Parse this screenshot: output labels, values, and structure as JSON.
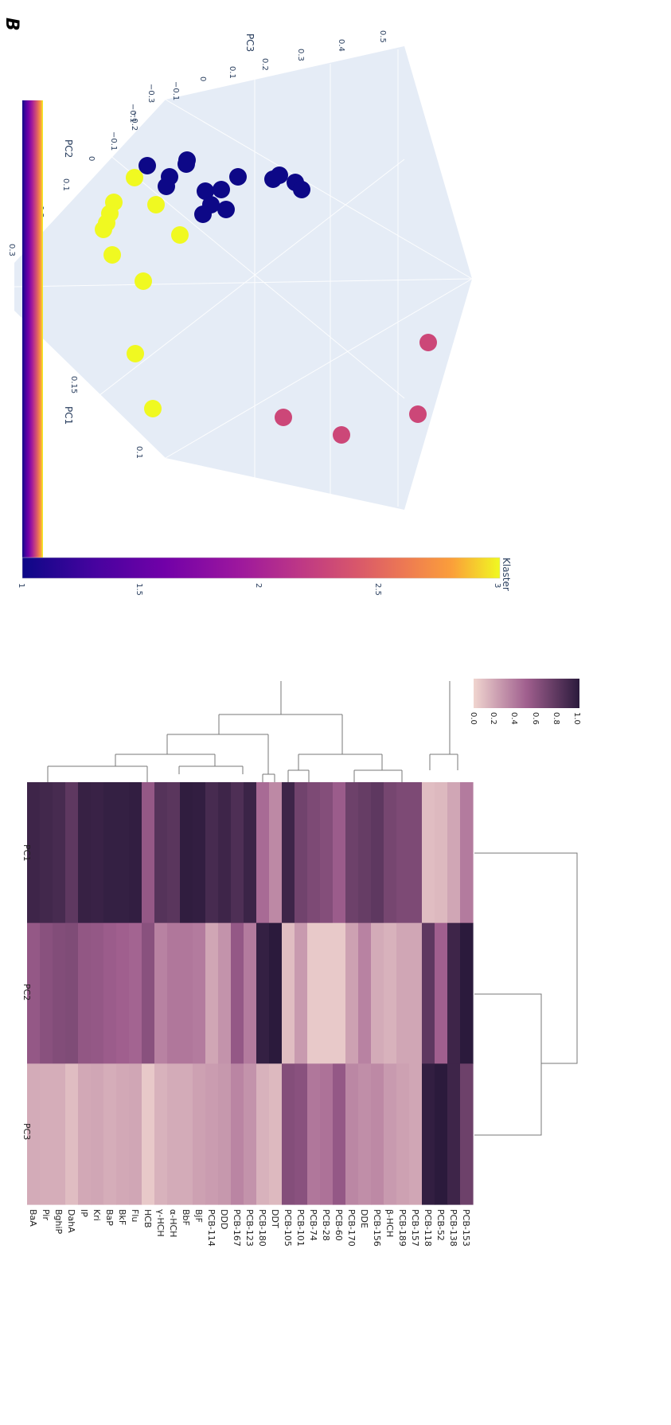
{
  "panel_letter": "B",
  "chart_data": [
    {
      "type": "scatter",
      "chart": "3d-pca-clusters",
      "axes": {
        "x": {
          "label": "PC1",
          "ticks": [
            "0.1",
            "0.15"
          ]
        },
        "y": {
          "label": "PC2",
          "ticks": [
            "−0.2",
            "−0.1",
            "0",
            "0.1",
            "0.2",
            "0.3"
          ]
        },
        "z": {
          "label": "PC3",
          "ticks": [
            "−0.3",
            "−0.1",
            "−0.1",
            "0",
            "0.1",
            "0.2",
            "0.3",
            "0.4",
            "0.5"
          ]
        }
      },
      "colorbar": {
        "title": "Klaster",
        "ticks": [
          "1",
          "1.5",
          "2",
          "2.5",
          "3"
        ],
        "range": [
          1,
          3
        ]
      },
      "colors": {
        "cluster1": "#0d0887",
        "cluster2": "#cc4778",
        "cluster3": "#f0f921",
        "scene_bg": "#e5ecf6"
      },
      "points": [
        {
          "cluster": 1,
          "u": 185,
          "v": 208
        },
        {
          "cluster": 1,
          "u": 213,
          "v": 222
        },
        {
          "cluster": 1,
          "u": 209,
          "v": 234
        },
        {
          "cluster": 1,
          "u": 235,
          "v": 201
        },
        {
          "cluster": 1,
          "u": 234,
          "v": 206
        },
        {
          "cluster": 1,
          "u": 299,
          "v": 222
        },
        {
          "cluster": 1,
          "u": 258,
          "v": 240
        },
        {
          "cluster": 1,
          "u": 278,
          "v": 238
        },
        {
          "cluster": 1,
          "u": 265,
          "v": 257
        },
        {
          "cluster": 1,
          "u": 255,
          "v": 269
        },
        {
          "cluster": 1,
          "u": 284,
          "v": 263
        },
        {
          "cluster": 1,
          "u": 343,
          "v": 225
        },
        {
          "cluster": 1,
          "u": 351,
          "v": 220
        },
        {
          "cluster": 1,
          "u": 371,
          "v": 229
        },
        {
          "cluster": 1,
          "u": 379,
          "v": 238
        },
        {
          "cluster": 3,
          "u": 169,
          "v": 223
        },
        {
          "cluster": 3,
          "u": 143,
          "v": 254
        },
        {
          "cluster": 3,
          "u": 138,
          "v": 268
        },
        {
          "cluster": 3,
          "u": 134,
          "v": 280
        },
        {
          "cluster": 3,
          "u": 130,
          "v": 288
        },
        {
          "cluster": 3,
          "u": 196,
          "v": 257
        },
        {
          "cluster": 3,
          "u": 226,
          "v": 295
        },
        {
          "cluster": 3,
          "u": 141,
          "v": 320
        },
        {
          "cluster": 3,
          "u": 180,
          "v": 353
        },
        {
          "cluster": 3,
          "u": 170,
          "v": 444
        },
        {
          "cluster": 3,
          "u": 192,
          "v": 513
        },
        {
          "cluster": 2,
          "u": 538,
          "v": 430
        },
        {
          "cluster": 2,
          "u": 356,
          "v": 524
        },
        {
          "cluster": 2,
          "u": 525,
          "v": 520
        },
        {
          "cluster": 2,
          "u": 429,
          "v": 546
        }
      ]
    },
    {
      "type": "heatmap",
      "chart": "clustered-loadings",
      "columns": [
        "PC1",
        "PC2",
        "PC3"
      ],
      "rows": [
        "BaA",
        "Pir",
        "BghiP",
        "DahA",
        "IP",
        "Kri",
        "BaP",
        "BkF",
        "Flu",
        "HCB",
        "γ-HCH",
        "α-HCH",
        "BbF",
        "BjF",
        "PCB-114",
        "DDD",
        "PCB-167",
        "PCB-123",
        "PCB-180",
        "DDT",
        "PCB-105",
        "PCB-101",
        "PCB-74",
        "PCB-28",
        "PCB-60",
        "PCB-170",
        "DDE",
        "PCB-156",
        "β-HCH",
        "PCB-189",
        "PCB-157",
        "PCB-118",
        "PCB-52",
        "PCB-138",
        "PCB-153"
      ],
      "values": [
        [
          0.92,
          0.55,
          0.18
        ],
        [
          0.9,
          0.6,
          0.17
        ],
        [
          0.88,
          0.63,
          0.17
        ],
        [
          0.78,
          0.64,
          0.1
        ],
        [
          0.95,
          0.56,
          0.19
        ],
        [
          0.94,
          0.55,
          0.2
        ],
        [
          0.96,
          0.52,
          0.17
        ],
        [
          0.96,
          0.5,
          0.19
        ],
        [
          0.97,
          0.48,
          0.2
        ],
        [
          0.55,
          0.6,
          0.05
        ],
        [
          0.82,
          0.35,
          0.15
        ],
        [
          0.8,
          0.4,
          0.18
        ],
        [
          0.98,
          0.4,
          0.18
        ],
        [
          0.97,
          0.38,
          0.22
        ],
        [
          0.88,
          0.2,
          0.24
        ],
        [
          0.92,
          0.28,
          0.26
        ],
        [
          0.85,
          0.55,
          0.34
        ],
        [
          0.93,
          0.38,
          0.28
        ],
        [
          0.45,
          0.96,
          0.15
        ],
        [
          0.32,
          1.0,
          0.12
        ],
        [
          0.92,
          0.1,
          0.62
        ],
        [
          0.7,
          0.25,
          0.6
        ],
        [
          0.65,
          0.05,
          0.4
        ],
        [
          0.62,
          0.05,
          0.42
        ],
        [
          0.52,
          0.05,
          0.55
        ],
        [
          0.72,
          0.22,
          0.33
        ],
        [
          0.75,
          0.35,
          0.3
        ],
        [
          0.78,
          0.18,
          0.32
        ],
        [
          0.68,
          0.15,
          0.25
        ],
        [
          0.65,
          0.2,
          0.22
        ],
        [
          0.65,
          0.2,
          0.2
        ],
        [
          0.1,
          0.78,
          0.97
        ],
        [
          0.12,
          0.5,
          1.0
        ],
        [
          0.2,
          0.92,
          0.92
        ],
        [
          0.38,
          1.0,
          0.72
        ]
      ],
      "colorbar": {
        "ticks": [
          "0.0",
          "0.2",
          "0.4",
          "0.6",
          "0.8",
          "1.0"
        ],
        "range": [
          0,
          1
        ]
      },
      "colors": {
        "low": "#f0d5cf",
        "mid": "#a05f8e",
        "high": "#2b1a3c"
      }
    }
  ]
}
